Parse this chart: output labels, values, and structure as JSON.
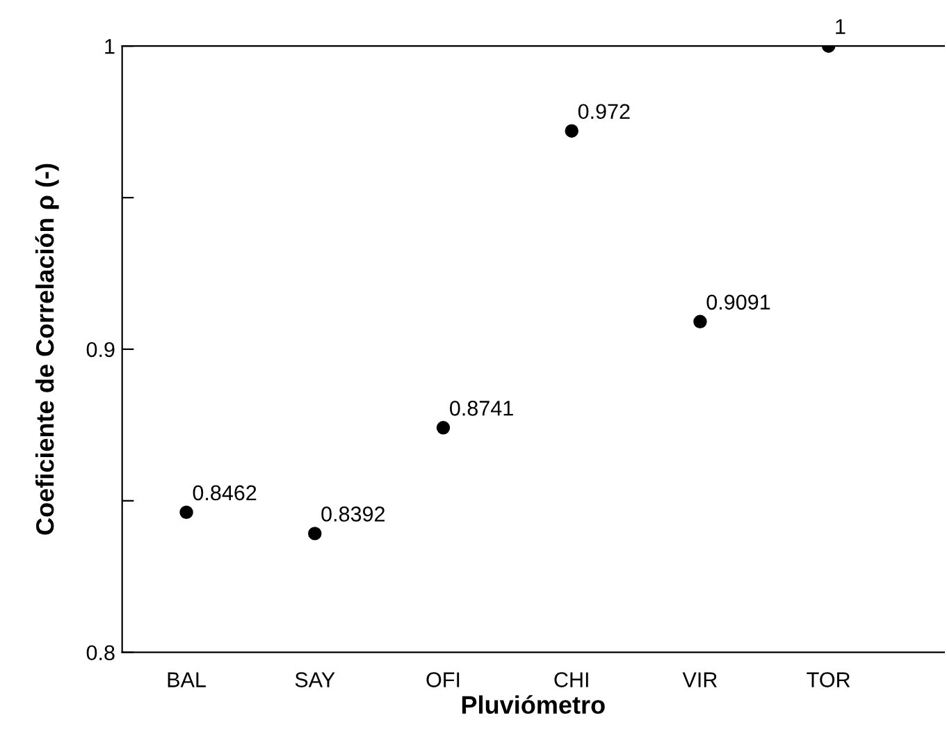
{
  "chart_data": {
    "type": "scatter",
    "xlabel": "Pluviómetro",
    "ylabel": "Coeficiente de Correlación ρ (-)",
    "categories": [
      "BAL",
      "SAY",
      "OFI",
      "CHI",
      "VIR",
      "TOR"
    ],
    "values": [
      0.8462,
      0.8392,
      0.8741,
      0.972,
      0.9091,
      1
    ],
    "color": "#000000",
    "marker": "circle",
    "data_labels": true,
    "grid": false,
    "legend": false,
    "ylim": [
      0.8,
      1
    ],
    "yticks": [
      0.8,
      {
        "value": 0.85,
        "label": null
      },
      0.9,
      {
        "value": 0.95,
        "label": null
      },
      1
    ]
  }
}
